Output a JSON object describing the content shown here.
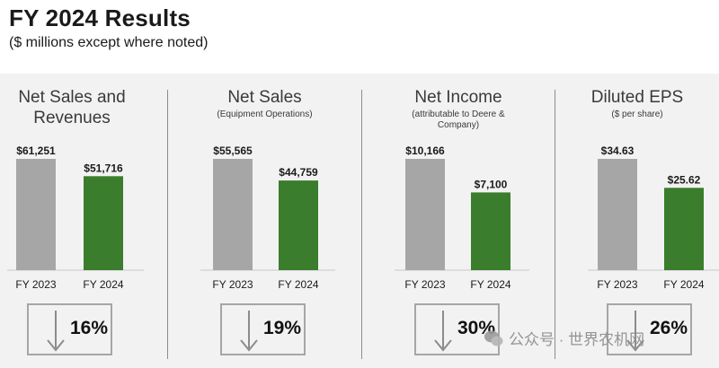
{
  "header": {
    "title": "FY 2024 Results",
    "subtitle": "($ millions except where noted)"
  },
  "colors": {
    "fy2023": "#a6a6a6",
    "fy2024": "#3a7d2c",
    "panel": "#f2f2f2"
  },
  "chart_data": [
    {
      "type": "bar",
      "title": "Net Sales and Revenues",
      "subtitle": "",
      "categories": [
        "FY 2023",
        "FY 2024"
      ],
      "values": [
        61251,
        51716
      ],
      "value_labels": [
        "$61,251",
        "$51,716"
      ],
      "change": "16%",
      "change_direction": "down"
    },
    {
      "type": "bar",
      "title": "Net Sales",
      "subtitle": "(Equipment Operations)",
      "categories": [
        "FY 2023",
        "FY 2024"
      ],
      "values": [
        55565,
        44759
      ],
      "value_labels": [
        "$55,565",
        "$44,759"
      ],
      "change": "19%",
      "change_direction": "down"
    },
    {
      "type": "bar",
      "title": "Net Income",
      "subtitle": "(attributable to Deere & Company)",
      "categories": [
        "FY 2023",
        "FY 2024"
      ],
      "values": [
        10166,
        7100
      ],
      "value_labels": [
        "$10,166",
        "$7,100"
      ],
      "change": "30%",
      "change_direction": "down"
    },
    {
      "type": "bar",
      "title": "Diluted EPS",
      "subtitle": "($ per share)",
      "categories": [
        "FY 2023",
        "FY 2024"
      ],
      "values": [
        34.63,
        25.62
      ],
      "value_labels": [
        "$34.63",
        "$25.62"
      ],
      "change": "26%",
      "change_direction": "down"
    }
  ],
  "watermark": {
    "text": "公众号 · 世界农机网"
  }
}
